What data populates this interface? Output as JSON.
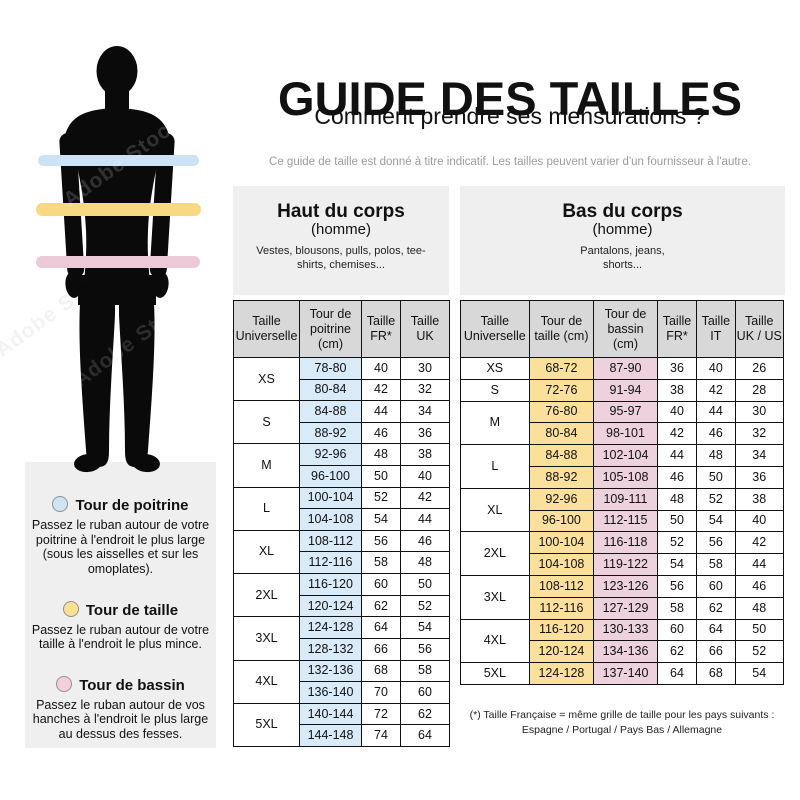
{
  "header": {
    "title": "GUIDE DES TAILLES",
    "subtitle": "Comment prendre ses mensurations ?",
    "disclaimer": "Ce guide de taille est donné à titre indicatif. Les tailles peuvent varier d'un fournisseur à l'autre."
  },
  "figure": {
    "watermark": "Adobe Stock",
    "bands": [
      {
        "name": "tour-de-poitrine",
        "color": "#cbe3f5"
      },
      {
        "name": "tour-de-taille",
        "color": "#f8d981"
      },
      {
        "name": "tour-de-bassin",
        "color": "#ecc9d7"
      }
    ]
  },
  "legend": {
    "items": [
      {
        "title": "Tour de poitrine",
        "color": "#cfe5f6",
        "text": "Passez le ruban autour de votre poitrine à l'endroit le plus large (sous les aisselles et sur les omoplates)."
      },
      {
        "title": "Tour de taille",
        "color": "#fbe094",
        "text": "Passez le ruban autour de votre taille à l'endroit le plus mince."
      },
      {
        "title": "Tour de bassin",
        "color": "#f3cfdc",
        "text": "Passez le ruban autour de vos hanches à l'endroit le plus large au dessus des fesses."
      }
    ]
  },
  "upper_table": {
    "panel": {
      "title": "Haut du corps",
      "subtitle": "(homme)",
      "desc": "Vestes, blousons, pulls, polos, tee-shirts, chemises..."
    },
    "columns": [
      "Taille Universelle",
      "Tour de poitrine (cm)",
      "Taille FR*",
      "Taille UK"
    ],
    "value_col_colors": [
      "#d9eaf8",
      null,
      null
    ],
    "groups": [
      {
        "size": "XS",
        "rows": [
          [
            "78-80",
            "40",
            "30"
          ],
          [
            "80-84",
            "42",
            "32"
          ]
        ]
      },
      {
        "size": "S",
        "rows": [
          [
            "84-88",
            "44",
            "34"
          ],
          [
            "88-92",
            "46",
            "36"
          ]
        ]
      },
      {
        "size": "M",
        "rows": [
          [
            "92-96",
            "48",
            "38"
          ],
          [
            "96-100",
            "50",
            "40"
          ]
        ]
      },
      {
        "size": "L",
        "rows": [
          [
            "100-104",
            "52",
            "42"
          ],
          [
            "104-108",
            "54",
            "44"
          ]
        ]
      },
      {
        "size": "XL",
        "rows": [
          [
            "108-112",
            "56",
            "46"
          ],
          [
            "112-116",
            "58",
            "48"
          ]
        ]
      },
      {
        "size": "2XL",
        "rows": [
          [
            "116-120",
            "60",
            "50"
          ],
          [
            "120-124",
            "62",
            "52"
          ]
        ]
      },
      {
        "size": "3XL",
        "rows": [
          [
            "124-128",
            "64",
            "54"
          ],
          [
            "128-132",
            "66",
            "56"
          ]
        ]
      },
      {
        "size": "4XL",
        "rows": [
          [
            "132-136",
            "68",
            "58"
          ],
          [
            "136-140",
            "70",
            "60"
          ]
        ]
      },
      {
        "size": "5XL",
        "rows": [
          [
            "140-144",
            "72",
            "62"
          ],
          [
            "144-148",
            "74",
            "64"
          ]
        ]
      }
    ]
  },
  "lower_table": {
    "panel": {
      "title": "Bas du corps",
      "subtitle": "(homme)",
      "desc": "Pantalons, jeans, shorts..."
    },
    "columns": [
      "Taille Universelle",
      "Tour de taille (cm)",
      "Tour de bassin (cm)",
      "Taille FR*",
      "Taille IT",
      "Taille UK / US"
    ],
    "value_col_colors": [
      "#fbe09c",
      "#edd2de",
      null,
      null,
      null
    ],
    "groups": [
      {
        "size": "XS",
        "rows": [
          [
            "68-72",
            "87-90",
            "36",
            "40",
            "26"
          ]
        ]
      },
      {
        "size": "S",
        "rows": [
          [
            "72-76",
            "91-94",
            "38",
            "42",
            "28"
          ]
        ]
      },
      {
        "size": "M",
        "rows": [
          [
            "76-80",
            "95-97",
            "40",
            "44",
            "30"
          ],
          [
            "80-84",
            "98-101",
            "42",
            "46",
            "32"
          ]
        ]
      },
      {
        "size": "L",
        "rows": [
          [
            "84-88",
            "102-104",
            "44",
            "48",
            "34"
          ],
          [
            "88-92",
            "105-108",
            "46",
            "50",
            "36"
          ]
        ]
      },
      {
        "size": "XL",
        "rows": [
          [
            "92-96",
            "109-111",
            "48",
            "52",
            "38"
          ],
          [
            "96-100",
            "112-115",
            "50",
            "54",
            "40"
          ]
        ]
      },
      {
        "size": "2XL",
        "rows": [
          [
            "100-104",
            "116-118",
            "52",
            "56",
            "42"
          ],
          [
            "104-108",
            "119-122",
            "54",
            "58",
            "44"
          ]
        ]
      },
      {
        "size": "3XL",
        "rows": [
          [
            "108-112",
            "123-126",
            "56",
            "60",
            "46"
          ],
          [
            "112-116",
            "127-129",
            "58",
            "62",
            "48"
          ]
        ]
      },
      {
        "size": "4XL",
        "rows": [
          [
            "116-120",
            "130-133",
            "60",
            "64",
            "50"
          ],
          [
            "120-124",
            "134-136",
            "62",
            "66",
            "52"
          ]
        ]
      },
      {
        "size": "5XL",
        "rows": [
          [
            "124-128",
            "137-140",
            "64",
            "68",
            "54"
          ]
        ]
      }
    ]
  },
  "footnote": {
    "line1": "(*) Taille Française = même grille de taille pour les pays suivants :",
    "line2": "Espagne / Portugal / Pays Bas / Allemagne"
  }
}
